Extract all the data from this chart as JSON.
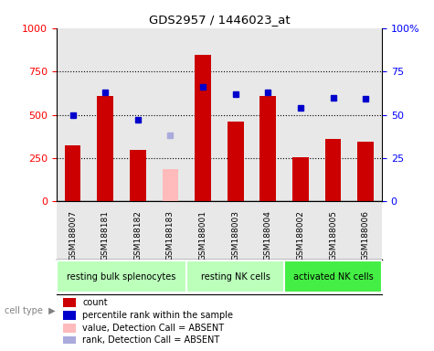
{
  "title": "GDS2957 / 1446023_at",
  "samples": [
    "GSM188007",
    "GSM188181",
    "GSM188182",
    "GSM188183",
    "GSM188001",
    "GSM188003",
    "GSM188004",
    "GSM188002",
    "GSM188005",
    "GSM188006"
  ],
  "count_values": [
    325,
    610,
    295,
    null,
    845,
    460,
    610,
    255,
    360,
    345
  ],
  "count_absent": [
    null,
    null,
    null,
    185,
    null,
    null,
    null,
    null,
    null,
    null
  ],
  "percentile_values": [
    50,
    63,
    47,
    null,
    66,
    62,
    63,
    54,
    60,
    59
  ],
  "percentile_absent": [
    null,
    null,
    null,
    38,
    null,
    null,
    null,
    null,
    null,
    null
  ],
  "groups": [
    {
      "label": "resting bulk splenocytes",
      "start": 0,
      "end": 4,
      "color": "#bbffbb"
    },
    {
      "label": "resting NK cells",
      "start": 4,
      "end": 7,
      "color": "#bbffbb"
    },
    {
      "label": "activated NK cells",
      "start": 7,
      "end": 10,
      "color": "#44ee44"
    }
  ],
  "ylim_left": [
    0,
    1000
  ],
  "yticks_left": [
    0,
    250,
    500,
    750,
    1000
  ],
  "yticks_right": [
    0,
    25,
    50,
    75,
    100
  ],
  "bar_color_present": "#cc0000",
  "bar_color_absent": "#ffbbbb",
  "dot_color_present": "#0000cc",
  "dot_color_absent": "#aaaadd",
  "bar_width": 0.5,
  "legend_items": [
    {
      "label": "count",
      "color": "#cc0000"
    },
    {
      "label": "percentile rank within the sample",
      "color": "#0000cc"
    },
    {
      "label": "value, Detection Call = ABSENT",
      "color": "#ffbbbb"
    },
    {
      "label": "rank, Detection Call = ABSENT",
      "color": "#aaaadd"
    }
  ],
  "col_bg_color": "#cccccc",
  "plot_bg_color": "#ffffff"
}
